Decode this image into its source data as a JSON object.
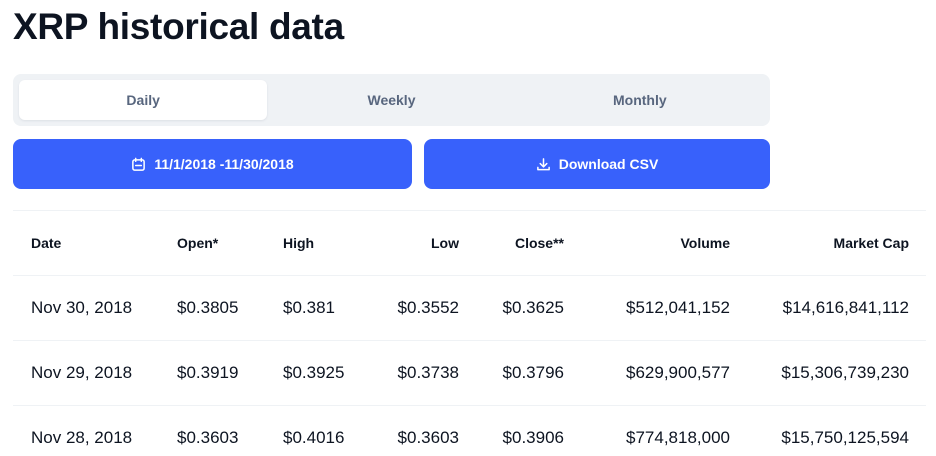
{
  "page": {
    "title": "XRP historical data"
  },
  "tabs": [
    {
      "label": "Daily",
      "active": true
    },
    {
      "label": "Weekly",
      "active": false
    },
    {
      "label": "Monthly",
      "active": false
    }
  ],
  "actions": {
    "date_range_label": "11/1/2018 -11/30/2018",
    "date_range_icon": "calendar-icon",
    "download_label": "Download CSV",
    "download_icon": "download-icon"
  },
  "colors": {
    "accent": "#3861fb",
    "tab_bg": "#eff2f5",
    "text": "#0d1421",
    "muted": "#58667e"
  },
  "table": {
    "headers": {
      "date": "Date",
      "open": "Open*",
      "high": "High",
      "low": "Low",
      "close": "Close**",
      "volume": "Volume",
      "market_cap": "Market Cap"
    },
    "rows": [
      {
        "date": "Nov 30, 2018",
        "open": "$0.3805",
        "high": "$0.381",
        "low": "$0.3552",
        "close": "$0.3625",
        "volume": "$512,041,152",
        "market_cap": "$14,616,841,112"
      },
      {
        "date": "Nov 29, 2018",
        "open": "$0.3919",
        "high": "$0.3925",
        "low": "$0.3738",
        "close": "$0.3796",
        "volume": "$629,900,577",
        "market_cap": "$15,306,739,230"
      },
      {
        "date": "Nov 28, 2018",
        "open": "$0.3603",
        "high": "$0.4016",
        "low": "$0.3603",
        "close": "$0.3906",
        "volume": "$774,818,000",
        "market_cap": "$15,750,125,594"
      }
    ]
  }
}
